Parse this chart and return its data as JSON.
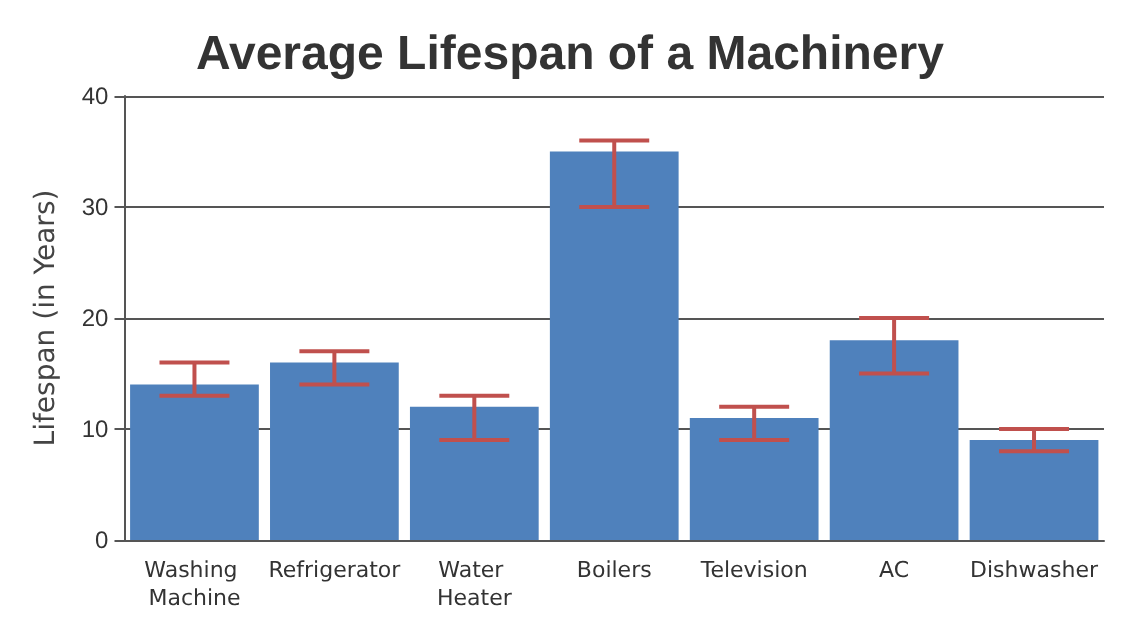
{
  "chart_data": {
    "type": "bar",
    "title": "Average Lifespan of a Machinery",
    "ylabel": "Lifespan (in Years)",
    "categories": [
      "Washing Machine",
      "Refrigerator",
      "Water Heater",
      "Boilers",
      "Television",
      "AC",
      "Dishwasher"
    ],
    "series": [
      {
        "color": "#4f81bc",
        "values": [
          14,
          16,
          12,
          35,
          11,
          18,
          9
        ],
        "errors": [
          [
            13,
            16
          ],
          [
            14,
            17
          ],
          [
            9,
            13
          ],
          [
            30,
            36
          ],
          [
            9,
            12
          ],
          [
            15,
            20
          ],
          [
            8,
            10
          ]
        ]
      }
    ],
    "ylim": [
      0,
      40
    ],
    "yticks": [
      0,
      10,
      20,
      30,
      40
    ],
    "grid": "y"
  }
}
